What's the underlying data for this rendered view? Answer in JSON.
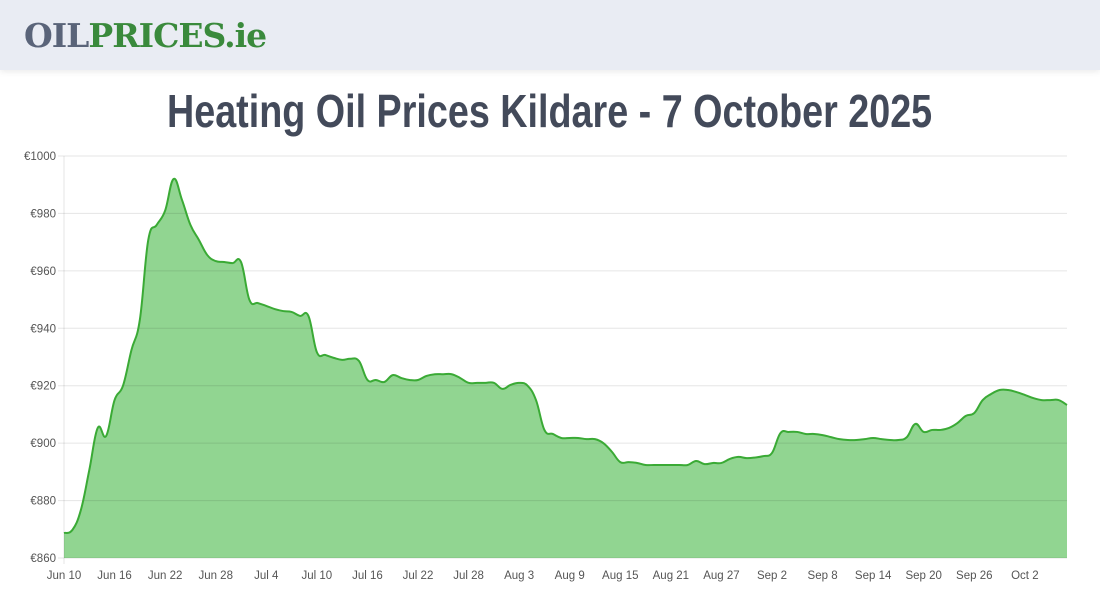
{
  "header": {
    "logo_part1": "OIL",
    "logo_part2": "PRICES.ie"
  },
  "page_title": "Heating Oil Prices Kildare - 7 October 2025",
  "colors": {
    "line": "#3aaa35",
    "fill": "#91d591",
    "grid": "#e3e3e3"
  },
  "chart_data": {
    "type": "area",
    "title": "Heating Oil Prices Kildare - 7 October 2025",
    "xlabel": "",
    "ylabel": "",
    "ylim": [
      860,
      1000
    ],
    "y_ticks": [
      "€860",
      "€880",
      "€900",
      "€920",
      "€940",
      "€960",
      "€980",
      "€1000"
    ],
    "y_tick_values": [
      860,
      880,
      900,
      920,
      940,
      960,
      980,
      1000
    ],
    "x_ticks": [
      "Jun 10",
      "Jun 16",
      "Jun 22",
      "Jun 28",
      "Jul 4",
      "Jul 10",
      "Jul 16",
      "Jul 22",
      "Jul 28",
      "Aug 3",
      "Aug 9",
      "Aug 15",
      "Aug 21",
      "Aug 27",
      "Sep 2",
      "Sep 8",
      "Sep 14",
      "Sep 20",
      "Sep 26",
      "Oct 2"
    ],
    "x_start": "Jun 10",
    "x_end": "Oct 7",
    "x_unit": "day",
    "grid": true,
    "values": [
      868.7,
      869.8,
      876.7,
      890.6,
      905.3,
      902.5,
      915,
      920,
      932.4,
      943,
      970.8,
      976,
      981,
      992,
      984.7,
      976,
      970.8,
      965.5,
      963.4,
      963.1,
      962.7,
      963.1,
      949.9,
      948.8,
      947.8,
      946.7,
      946,
      945.7,
      944.3,
      944.3,
      931.7,
      930.7,
      929.7,
      929,
      929.4,
      928.6,
      922,
      922,
      921.3,
      923.7,
      922.7,
      922,
      922,
      923.4,
      924,
      924,
      924,
      922.7,
      921,
      921,
      921,
      921,
      918.9,
      920.3,
      921,
      920,
      915,
      904.6,
      903.2,
      901.8,
      901.8,
      901.8,
      901.4,
      901.4,
      900,
      897,
      893.4,
      893.4,
      893.1,
      892.4,
      892.4,
      892.4,
      892.4,
      892.4,
      892.4,
      893.8,
      892.7,
      893.1,
      893.1,
      894.5,
      895.2,
      894.8,
      895,
      895.5,
      896.6,
      903.5,
      903.9,
      903.9,
      903.2,
      903.2,
      902.8,
      902.1,
      901.4,
      901.1,
      901.1,
      901.4,
      901.8,
      901.4,
      901.1,
      901.1,
      902.1,
      906.7,
      903.9,
      904.6,
      904.6,
      905.3,
      907,
      909.5,
      910.5,
      915,
      917.1,
      918.5,
      918.5,
      917.8,
      916.8,
      915.7,
      915,
      915,
      915,
      913.3
    ]
  }
}
